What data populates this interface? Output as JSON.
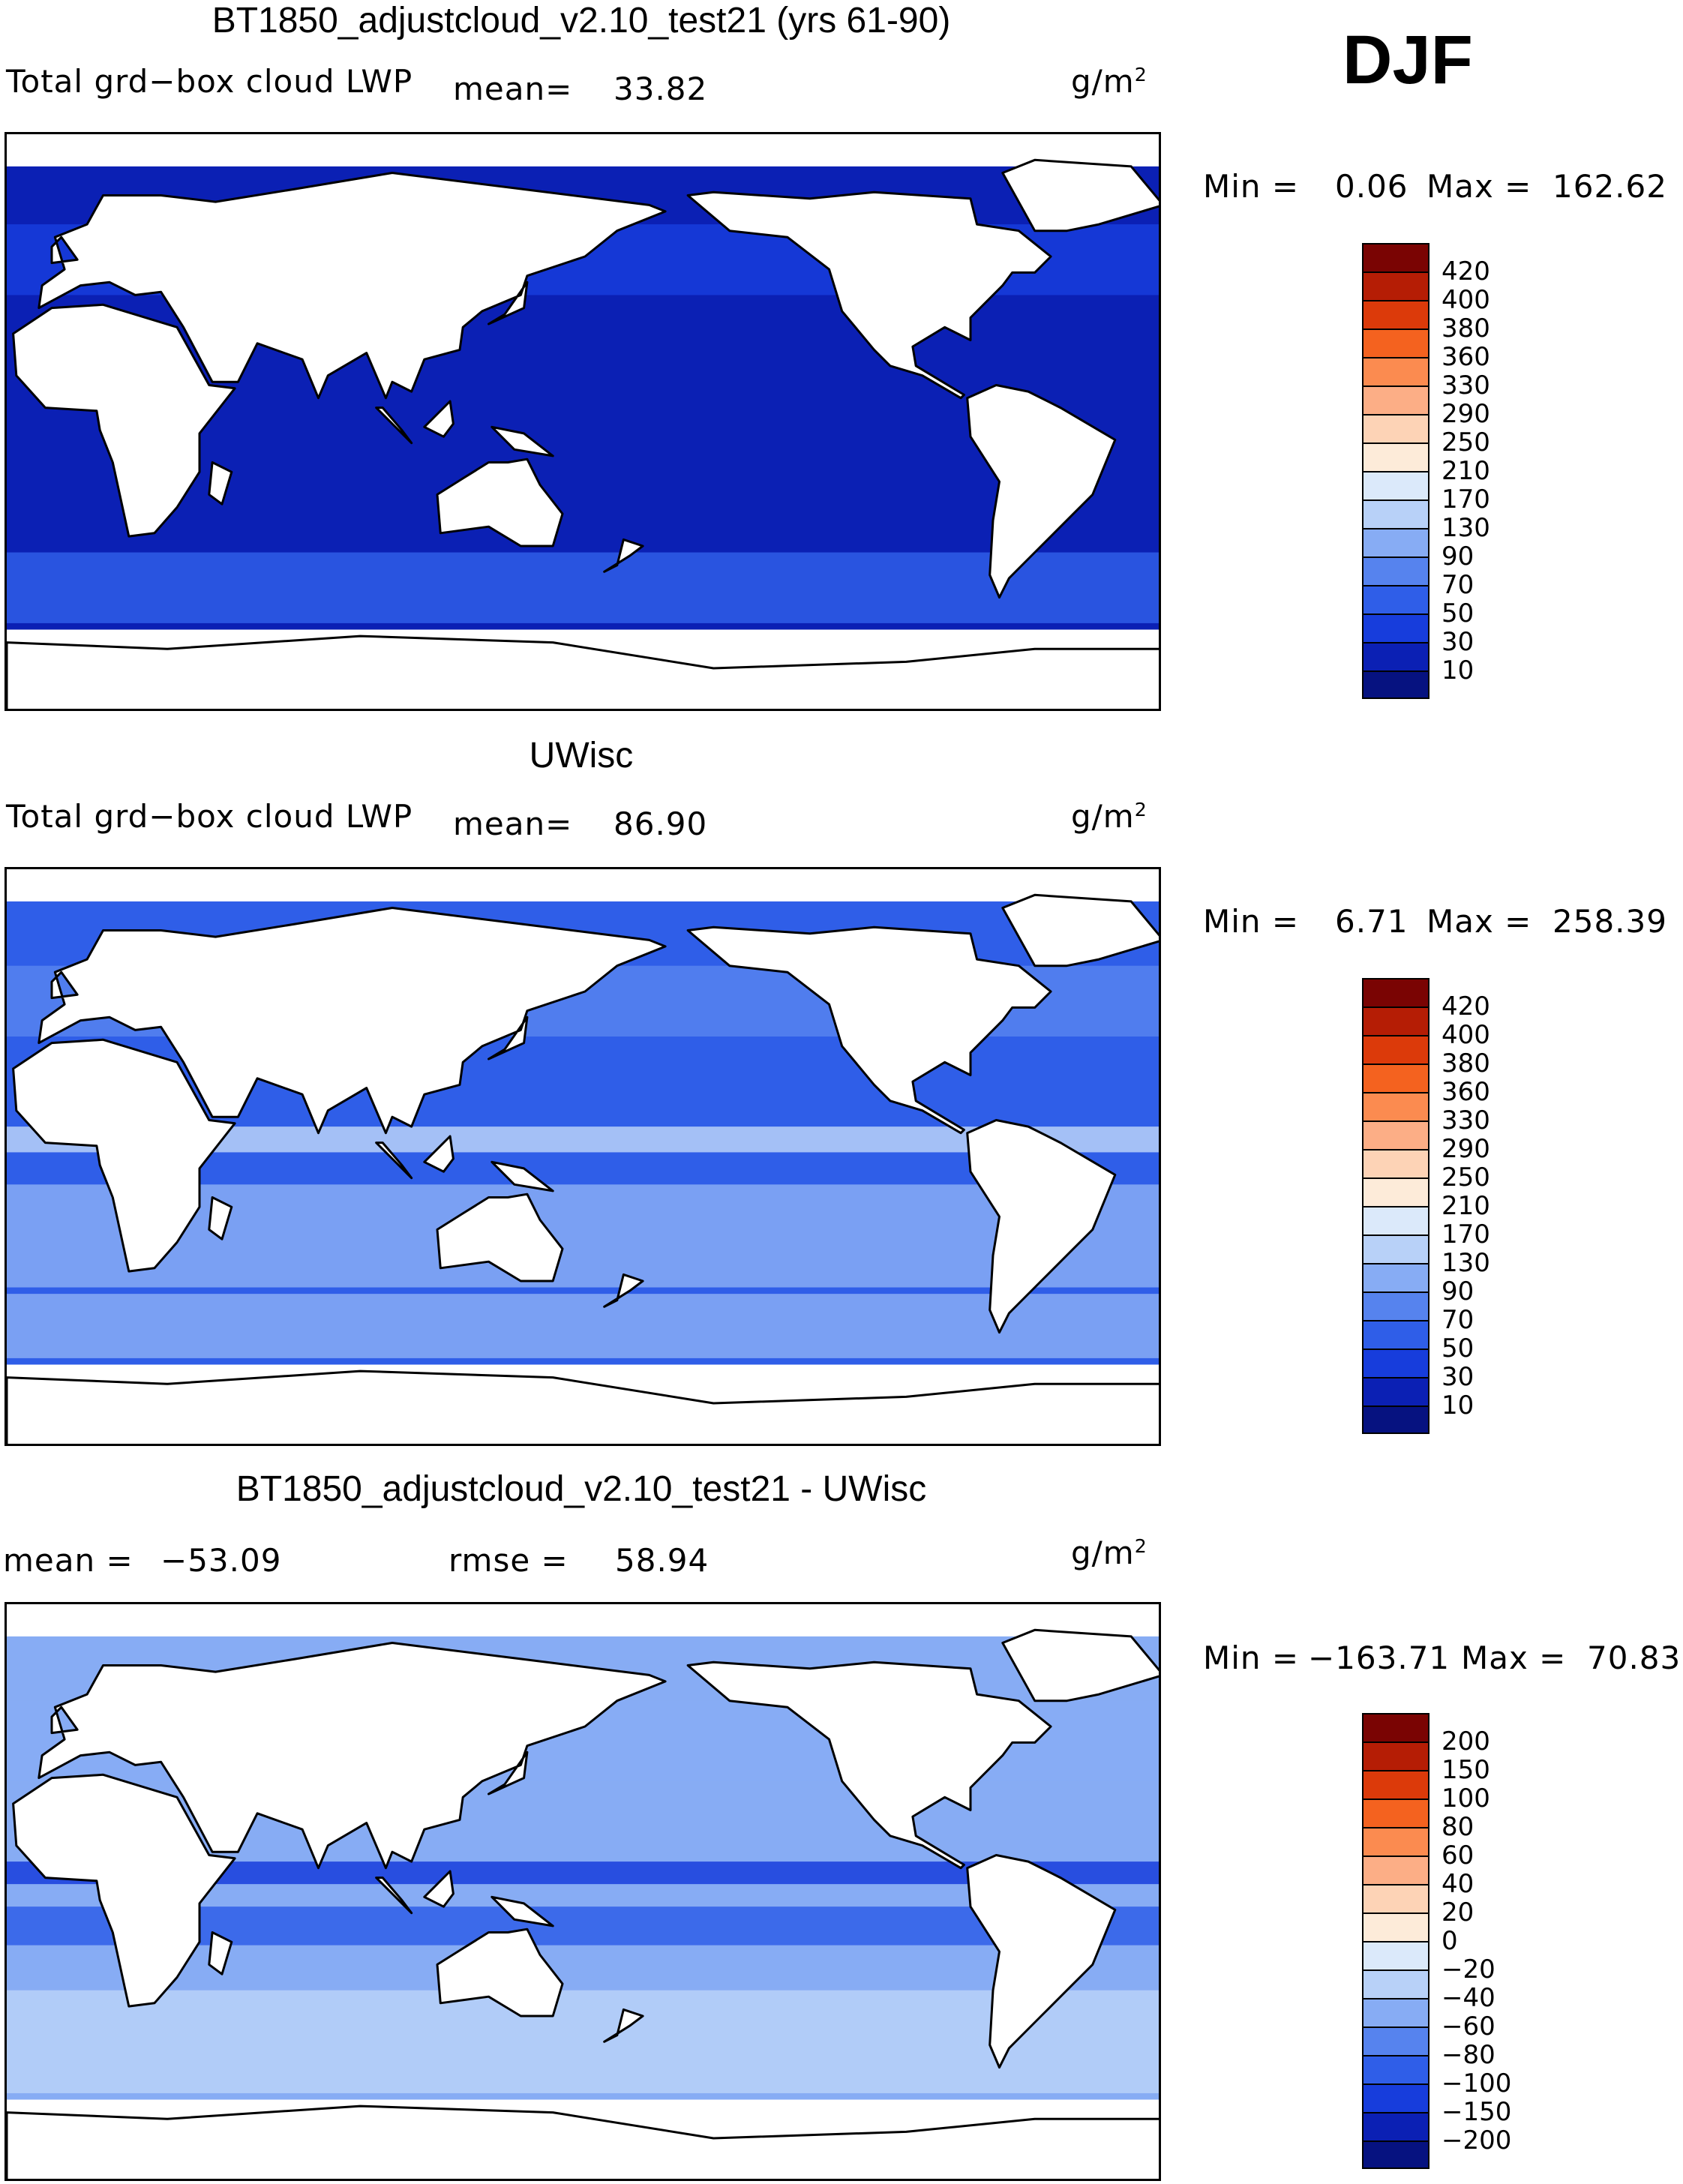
{
  "season": "DJF",
  "units_base": "g/m",
  "units_exp": "2",
  "panels": [
    {
      "title": "BT1850_adjustcloud_v2.10_test21 (yrs 61-90)",
      "left_label": "Total grd−box cloud LWP",
      "mean_label": "mean=",
      "mean_value": "33.82",
      "min_label": "Min =",
      "min_value": "0.06",
      "max_label": "Max =",
      "max_value": "162.62",
      "field_level": 0.14,
      "colorbar_labels": [
        "420",
        "400",
        "380",
        "360",
        "330",
        "290",
        "250",
        "210",
        "170",
        "130",
        "90",
        "70",
        "50",
        "30",
        "10"
      ]
    },
    {
      "title": "UWisc",
      "left_label": "Total grd−box cloud LWP",
      "mean_label": "mean=",
      "mean_value": "86.90",
      "min_label": "Min =",
      "min_value": "6.71",
      "max_label": "Max =",
      "max_value": "258.39",
      "field_level": 0.42,
      "colorbar_labels": [
        "420",
        "400",
        "380",
        "360",
        "330",
        "290",
        "250",
        "210",
        "170",
        "130",
        "90",
        "70",
        "50",
        "30",
        "10"
      ]
    },
    {
      "title": "BT1850_adjustcloud_v2.10_test21 - UWisc",
      "mean_label": "mean =",
      "mean_value": "−53.09",
      "rmse_label": "rmse =",
      "rmse_value": "58.94",
      "min_label": "Min =",
      "min_value": "−163.71",
      "max_label": "Max =",
      "max_value": "70.83",
      "field_level": 0.5,
      "colorbar_labels": [
        "200",
        "150",
        "100",
        "80",
        "60",
        "40",
        "20",
        "0",
        "−20",
        "−40",
        "−60",
        "−80",
        "−100",
        "−150",
        "−200"
      ]
    }
  ],
  "colors": {
    "scale": [
      "#7a0403",
      "#b51d05",
      "#dc3a0a",
      "#f4621f",
      "#fb8b50",
      "#fcae86",
      "#fdd3b6",
      "#fdebd9",
      "#dbe9fa",
      "#b8d1f8",
      "#87acf4",
      "#5683ee",
      "#2f5ee8",
      "#173ddc",
      "#0b20b4",
      "#061280"
    ],
    "ocean_deep": "#0b20b4",
    "ocean_mid": "#2f5ee8",
    "ocean_light": "#87acf4",
    "land": "#ffffff"
  }
}
